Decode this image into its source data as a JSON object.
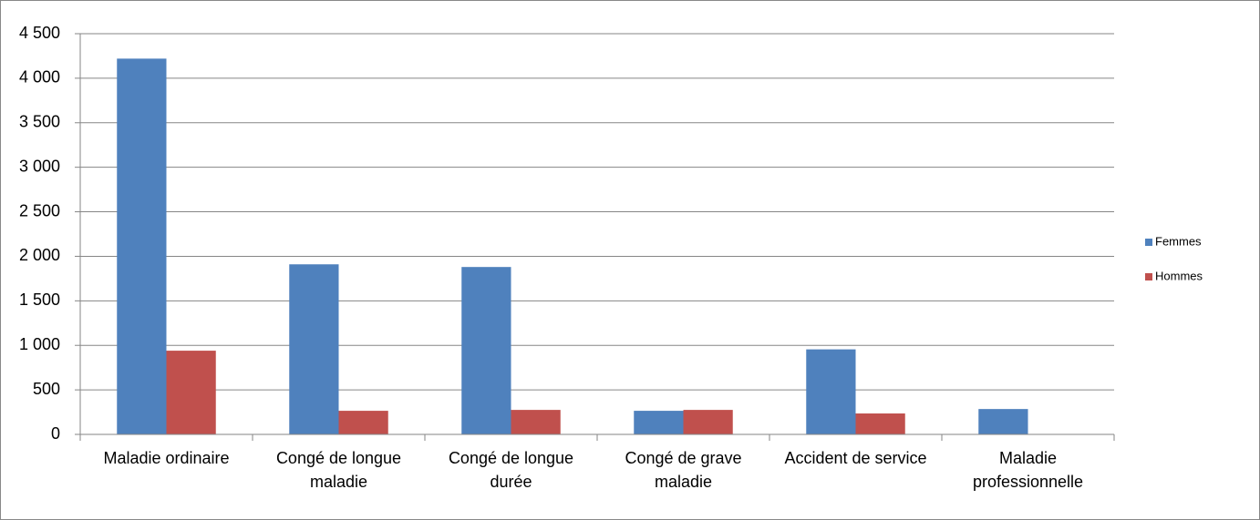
{
  "chart_data": {
    "type": "bar",
    "categories": [
      "Maladie ordinaire",
      "Congé de longue maladie",
      "Congé de longue durée",
      "Congé de grave maladie",
      "Accident de service",
      "Maladie professionnelle"
    ],
    "series": [
      {
        "name": "Femmes",
        "color": "#4f81bd",
        "values": [
          4220,
          1910,
          1880,
          265,
          955,
          285
        ]
      },
      {
        "name": "Hommes",
        "color": "#c0504d",
        "values": [
          940,
          265,
          275,
          275,
          235,
          0
        ]
      }
    ],
    "ylim": [
      0,
      4500
    ],
    "yticks": [
      0,
      500,
      {
        "value": 1000,
        "label": "1 000"
      },
      {
        "value": 1500,
        "label": "1 500"
      },
      {
        "value": 2000,
        "label": "2 000"
      },
      {
        "value": 2500,
        "label": "2 500"
      },
      {
        "value": 3000,
        "label": "3 000"
      },
      {
        "value": 3500,
        "label": "3 500"
      },
      {
        "value": 4000,
        "label": "4 000"
      },
      {
        "value": 4500,
        "label": "4 500"
      }
    ],
    "grid": true,
    "legend": "right"
  }
}
